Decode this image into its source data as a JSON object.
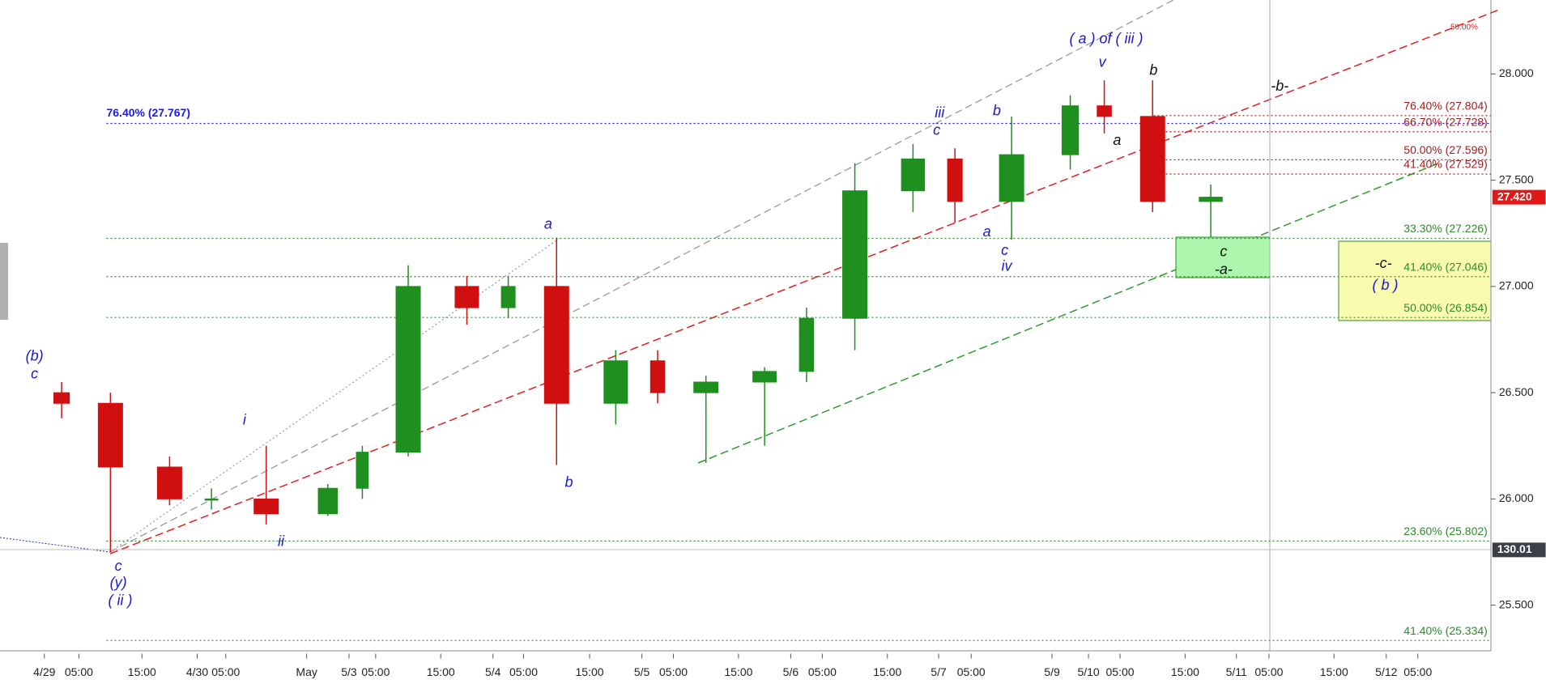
{
  "chart_data": {
    "type": "candlestick",
    "categories": [
      "4/29",
      "05:00",
      "15:00",
      "4/30",
      "05:00",
      "May",
      "5/3",
      "05:00",
      "15:00",
      "5/4",
      "05:00",
      "15:00",
      "5/5",
      "05:00",
      "15:00",
      "5/6",
      "05:00",
      "15:00",
      "5/7",
      "05:00",
      "5/9",
      "5/10",
      "05:00",
      "15:00",
      "5/11",
      "05:00",
      "15:00",
      "5/12",
      "05:00"
    ],
    "series": {
      "open": [
        26.5,
        26.45,
        26.15,
        26.0,
        26.0,
        25.93,
        26.05,
        26.22,
        27.0,
        26.9,
        27.0,
        26.45,
        26.65,
        26.5,
        26.55,
        26.6,
        26.85,
        27.45,
        27.6,
        27.4,
        27.62,
        27.85,
        27.8,
        27.4,
        null,
        null,
        null,
        null,
        null
      ],
      "high": [
        26.55,
        26.5,
        26.2,
        26.05,
        26.25,
        26.07,
        26.25,
        27.1,
        27.05,
        27.05,
        27.23,
        26.7,
        26.7,
        26.58,
        26.62,
        26.9,
        27.58,
        27.67,
        27.65,
        27.8,
        27.9,
        27.97,
        27.97,
        27.48,
        null,
        null,
        null,
        null,
        null
      ],
      "low": [
        26.38,
        25.75,
        25.97,
        25.95,
        25.88,
        25.92,
        26.0,
        26.2,
        26.82,
        26.85,
        26.16,
        26.35,
        26.45,
        26.17,
        26.25,
        26.55,
        26.7,
        27.35,
        27.3,
        27.22,
        27.55,
        27.72,
        27.35,
        27.23,
        null,
        null,
        null,
        null,
        null
      ],
      "close": [
        26.45,
        26.15,
        26.0,
        26.0,
        25.93,
        26.05,
        26.22,
        27.0,
        26.9,
        27.0,
        26.45,
        26.65,
        26.5,
        26.55,
        26.6,
        26.85,
        27.45,
        27.6,
        27.4,
        27.62,
        27.85,
        27.8,
        27.4,
        27.42,
        null,
        null,
        null,
        null,
        null
      ]
    },
    "up_color": "#1f8f1f",
    "down_color": "#d01010",
    "ylim": [
      25.287,
      28.348
    ],
    "yticks": [
      {
        "value": 25.5,
        "label": "25.500"
      },
      {
        "value": 26,
        "label": "26.000"
      },
      {
        "value": 26.5,
        "label": "26.500"
      },
      {
        "value": 27,
        "label": "27.000"
      },
      {
        "value": 27.5,
        "label": "27.500"
      },
      {
        "value": 28,
        "label": "28.000"
      }
    ],
    "last_price": {
      "value": 27.42,
      "label": "27.420"
    },
    "indicator_tag": "130.01",
    "top_label": "50.00%",
    "levels": [
      {
        "value": 27.767,
        "label": "76.40% (27.767)",
        "color": "#1a1aee"
      },
      {
        "value": 27.226,
        "label": "33.30% (27.226)",
        "color": "#2e8b2e"
      },
      {
        "value": 27.046,
        "label": "41.40% (27.046)",
        "color": "#2e8b2e"
      },
      {
        "value": 26.854,
        "label": "50.00% (26.854)",
        "color": "#2e8b2e"
      },
      {
        "value": 25.802,
        "label": "23.60% (25.802)",
        "color": "#2e8b2e"
      },
      {
        "value": 25.334,
        "label": "41.40% (25.334)",
        "color": "#2e8b2e"
      },
      {
        "value": 27.804,
        "label": "76.40% (27.804)",
        "color": "#a02020"
      },
      {
        "value": 27.728,
        "label": "66.70% (27.728)",
        "color": "#a02020"
      },
      {
        "value": 27.596,
        "label": "50.00% (27.596)",
        "color": "#a02020"
      },
      {
        "value": 27.529,
        "label": "41.40% (27.529)",
        "color": "#a02020"
      }
    ],
    "wave_labels": [
      "(b)",
      "c",
      "c",
      "(y)",
      "( ii )",
      "i",
      "ii",
      "a",
      "b",
      "iii",
      "c",
      "b",
      "a",
      "c",
      "iv",
      "( a )  of ( iii )",
      "v",
      "a",
      "b",
      "c",
      "-a-",
      "-b-",
      "-c-",
      "( b )"
    ]
  }
}
